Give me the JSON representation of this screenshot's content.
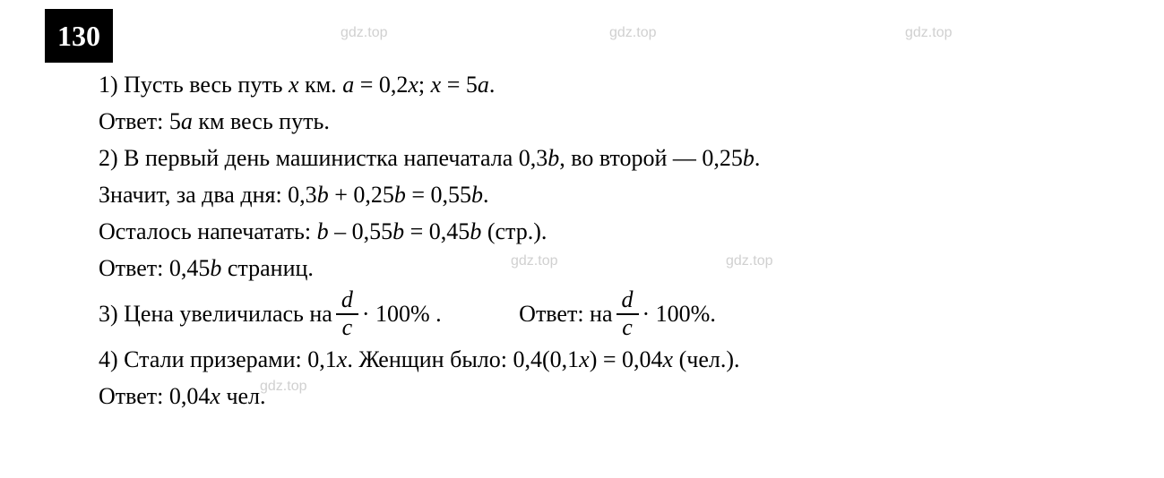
{
  "problemNumber": "130",
  "watermark": "gdz.top",
  "part1": {
    "text": "1) Пусть весь путь ",
    "var1": "x",
    "text2": " км. ",
    "var2": "a",
    "eq1": " = 0,2",
    "var3": "x",
    "semi": "; ",
    "var4": "x",
    "eq2": " = 5",
    "var5": "a",
    "end": ".",
    "answerLabel": "Ответ: 5",
    "answerVar": "a",
    "answerText": " км весь путь."
  },
  "part2": {
    "text1": "2) В первый день машинистка напечатала 0,3",
    "var1": "b",
    "text2": ", во второй — 0,25",
    "var2": "b",
    "end1": ".",
    "text3": "Значит, за два дня: 0,3",
    "var3": "b",
    "plus": " + 0,25",
    "var4": "b",
    "eq": " = 0,55",
    "var5": "b",
    "end2": ".",
    "text4": "Осталось напечатать: ",
    "var6": "b",
    "minus": " – 0,55",
    "var7": "b",
    "eq2": " = 0,45",
    "var8": "b",
    "end3": " (стр.).",
    "answerLabel": "Ответ: 0,45",
    "answerVar": "b",
    "answerText": " страниц."
  },
  "part3": {
    "text1": "3) Цена увеличилась на ",
    "fracNum": "d",
    "fracDen": "c",
    "mult": " · 100% .",
    "answerLabel": "Ответ: на ",
    "fracNum2": "d",
    "fracDen2": "c",
    "mult2": " · 100%."
  },
  "part4": {
    "text1": "4) Стали призерами: 0,1",
    "var1": "x",
    "text2": ". Женщин было: 0,4(0,1",
    "var2": "x",
    "text3": ") = 0,04",
    "var3": "x",
    "end": " (чел.).",
    "answerLabel": "Ответ: 0,04",
    "answerVar": "x",
    "answerText": " чел."
  }
}
